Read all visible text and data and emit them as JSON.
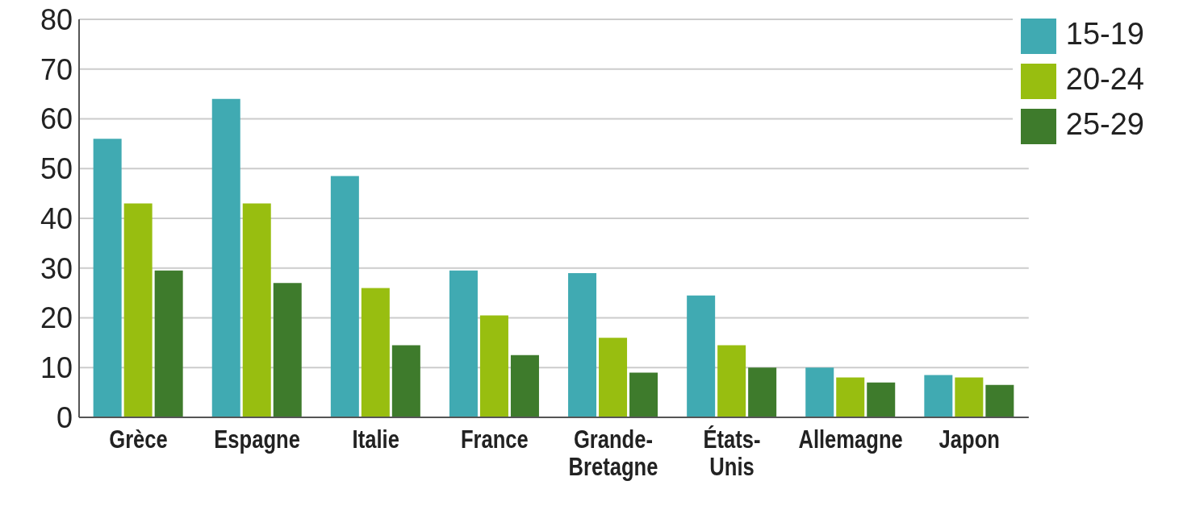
{
  "chart_data": {
    "type": "bar",
    "categories": [
      "Grèce",
      "Espagne",
      "Italie",
      "France",
      "Grande-Bretagne",
      "États-Unis",
      "Allemagne",
      "Japon"
    ],
    "series": [
      {
        "name": "15-19",
        "color": "#40aab2",
        "values": [
          56,
          64,
          48.5,
          29.5,
          29,
          24.5,
          10,
          8.5
        ]
      },
      {
        "name": "20-24",
        "color": "#98be10",
        "values": [
          43,
          43,
          26,
          20.5,
          16,
          14.5,
          8,
          8
        ]
      },
      {
        "name": "25-29",
        "color": "#3e7b2c",
        "values": [
          29.5,
          27,
          14.5,
          12.5,
          9,
          10,
          7,
          6.5
        ]
      }
    ],
    "ylim": [
      0,
      80
    ],
    "yticks": [
      0,
      10,
      20,
      30,
      40,
      50,
      60,
      70,
      80
    ],
    "grid": "y",
    "legend": "top right"
  }
}
